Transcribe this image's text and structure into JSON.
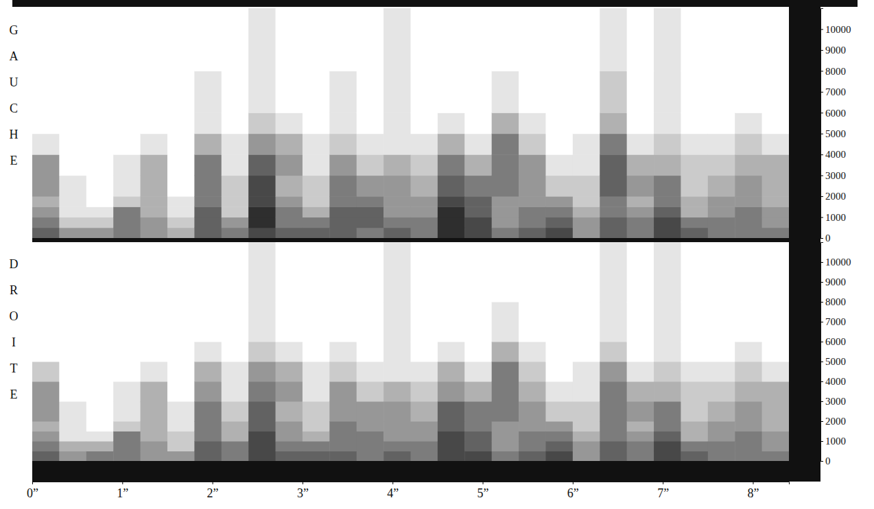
{
  "chart_data": [
    {
      "type": "heatmap",
      "title": "GAUCHE",
      "tick_labels": "y",
      "xlim": [
        0,
        8.4
      ],
      "ylim": [
        0,
        11000
      ],
      "yticks": [
        0,
        1000,
        2000,
        3000,
        4000,
        5000,
        6000,
        7000,
        8000,
        9000,
        10000
      ],
      "x_bins": [
        0,
        0.3,
        0.6,
        0.9,
        1.2,
        1.5,
        1.8,
        2.1,
        2.4,
        2.7,
        3.0,
        3.3,
        3.6,
        3.9,
        4.2,
        4.5,
        4.8,
        5.1,
        5.4,
        5.7,
        6.0,
        6.3,
        6.6,
        6.9,
        7.2,
        7.5,
        7.8,
        8.1,
        8.4
      ],
      "y_bins": [
        0,
        500,
        1000,
        1500,
        2000,
        3000,
        4000,
        5000,
        6000,
        8000,
        11000
      ],
      "zlim": [
        0,
        9
      ],
      "values": [
        [
          6,
          5,
          4,
          3,
          4,
          4,
          1,
          0,
          0,
          0
        ],
        [
          4,
          2,
          1,
          1,
          1,
          0,
          0,
          0,
          0,
          0
        ],
        [
          4,
          2,
          1,
          0,
          0,
          0,
          0,
          0,
          0,
          0
        ],
        [
          5,
          5,
          5,
          2,
          1,
          1,
          0,
          0,
          0,
          0
        ],
        [
          4,
          4,
          3,
          3,
          3,
          3,
          1,
          0,
          0,
          0
        ],
        [
          3,
          2,
          1,
          1,
          0,
          0,
          0,
          0,
          0,
          0
        ],
        [
          6,
          6,
          6,
          5,
          5,
          5,
          3,
          1,
          1,
          0
        ],
        [
          5,
          4,
          2,
          2,
          2,
          1,
          1,
          0,
          0,
          0
        ],
        [
          7,
          8,
          8,
          7,
          7,
          6,
          4,
          2,
          1,
          1
        ],
        [
          6,
          5,
          5,
          4,
          3,
          4,
          3,
          1,
          0,
          0
        ],
        [
          6,
          5,
          3,
          2,
          2,
          1,
          1,
          0,
          0,
          0
        ],
        [
          6,
          6,
          6,
          5,
          5,
          4,
          2,
          1,
          1,
          0
        ],
        [
          5,
          6,
          6,
          5,
          4,
          2,
          1,
          0,
          0,
          0
        ],
        [
          6,
          5,
          4,
          4,
          4,
          3,
          1,
          1,
          1,
          1
        ],
        [
          5,
          5,
          4,
          4,
          3,
          2,
          1,
          0,
          0,
          0
        ],
        [
          8,
          8,
          8,
          7,
          6,
          5,
          3,
          1,
          0,
          0
        ],
        [
          7,
          7,
          6,
          6,
          5,
          3,
          1,
          0,
          0,
          0
        ],
        [
          5,
          4,
          4,
          4,
          5,
          5,
          5,
          3,
          1,
          0
        ],
        [
          6,
          5,
          5,
          4,
          4,
          4,
          2,
          1,
          0,
          0
        ],
        [
          7,
          6,
          5,
          4,
          2,
          1,
          0,
          0,
          0,
          0
        ],
        [
          4,
          4,
          3,
          2,
          2,
          1,
          1,
          0,
          0,
          0
        ],
        [
          6,
          6,
          5,
          5,
          6,
          6,
          5,
          3,
          2,
          1
        ],
        [
          5,
          5,
          4,
          3,
          4,
          3,
          1,
          0,
          0,
          0
        ],
        [
          7,
          7,
          6,
          5,
          5,
          3,
          2,
          1,
          1,
          1
        ],
        [
          6,
          5,
          3,
          3,
          2,
          2,
          1,
          0,
          0,
          0
        ],
        [
          5,
          5,
          4,
          4,
          3,
          2,
          1,
          0,
          0,
          0
        ],
        [
          5,
          5,
          5,
          4,
          4,
          3,
          2,
          1,
          0,
          0
        ],
        [
          5,
          4,
          4,
          3,
          3,
          3,
          1,
          0,
          0,
          0
        ]
      ]
    },
    {
      "type": "heatmap",
      "title": "DROITE",
      "xlim": [
        0,
        8.4
      ],
      "ylim": [
        0,
        11000
      ],
      "xticks": [
        {
          "value": 0,
          "label": "0”"
        },
        {
          "value": 1,
          "label": "1”"
        },
        {
          "value": 2,
          "label": "2”"
        },
        {
          "value": 3,
          "label": "3”"
        },
        {
          "value": 4,
          "label": "4”"
        },
        {
          "value": 5,
          "label": "5”"
        },
        {
          "value": 6,
          "label": "6”"
        },
        {
          "value": 7,
          "label": "7”"
        },
        {
          "value": 8,
          "label": "8”"
        }
      ],
      "yticks": [
        0,
        1000,
        2000,
        3000,
        4000,
        5000,
        6000,
        7000,
        8000,
        9000,
        10000
      ],
      "x_bins": [
        0,
        0.3,
        0.6,
        0.9,
        1.2,
        1.5,
        1.8,
        2.1,
        2.4,
        2.7,
        3.0,
        3.3,
        3.6,
        3.9,
        4.2,
        4.5,
        4.8,
        5.1,
        5.4,
        5.7,
        6.0,
        6.3,
        6.6,
        6.9,
        7.2,
        7.5,
        7.8,
        8.1,
        8.4
      ],
      "y_bins": [
        0,
        500,
        1000,
        1500,
        2000,
        3000,
        4000,
        5000,
        6000,
        8000,
        11000
      ],
      "zlim": [
        0,
        9
      ],
      "values": [
        [
          6,
          5,
          4,
          3,
          4,
          4,
          2,
          0,
          0,
          0
        ],
        [
          4,
          3,
          1,
          1,
          1,
          0,
          0,
          0,
          0,
          0
        ],
        [
          5,
          3,
          1,
          0,
          0,
          0,
          0,
          0,
          0,
          0
        ],
        [
          5,
          5,
          5,
          2,
          1,
          1,
          0,
          0,
          0,
          0
        ],
        [
          4,
          4,
          3,
          3,
          3,
          3,
          1,
          0,
          0,
          0
        ],
        [
          4,
          2,
          2,
          1,
          1,
          0,
          0,
          0,
          0,
          0
        ],
        [
          6,
          6,
          5,
          5,
          5,
          4,
          3,
          1,
          0,
          0
        ],
        [
          5,
          5,
          3,
          3,
          2,
          1,
          1,
          0,
          0,
          0
        ],
        [
          7,
          7,
          7,
          6,
          6,
          5,
          4,
          2,
          1,
          1
        ],
        [
          6,
          5,
          4,
          4,
          3,
          4,
          3,
          1,
          0,
          0
        ],
        [
          6,
          5,
          3,
          2,
          2,
          1,
          1,
          0,
          0,
          0
        ],
        [
          6,
          5,
          5,
          5,
          4,
          4,
          2,
          1,
          0,
          0
        ],
        [
          5,
          5,
          5,
          4,
          4,
          2,
          1,
          0,
          0,
          0
        ],
        [
          6,
          5,
          4,
          4,
          4,
          3,
          1,
          1,
          1,
          1
        ],
        [
          5,
          5,
          4,
          4,
          3,
          2,
          1,
          0,
          0,
          0
        ],
        [
          7,
          7,
          7,
          6,
          6,
          4,
          3,
          1,
          0,
          0
        ],
        [
          7,
          6,
          6,
          5,
          5,
          3,
          1,
          0,
          0,
          0
        ],
        [
          5,
          4,
          4,
          4,
          5,
          5,
          5,
          3,
          1,
          0
        ],
        [
          6,
          5,
          5,
          4,
          4,
          3,
          2,
          1,
          0,
          0
        ],
        [
          7,
          6,
          5,
          4,
          2,
          1,
          0,
          0,
          0,
          0
        ],
        [
          4,
          4,
          3,
          2,
          2,
          1,
          1,
          0,
          0,
          0
        ],
        [
          6,
          6,
          5,
          5,
          5,
          5,
          4,
          2,
          1,
          1
        ],
        [
          5,
          5,
          4,
          3,
          4,
          3,
          1,
          0,
          0,
          0
        ],
        [
          7,
          7,
          6,
          5,
          5,
          3,
          2,
          1,
          1,
          1
        ],
        [
          6,
          5,
          3,
          3,
          2,
          2,
          1,
          0,
          0,
          0
        ],
        [
          5,
          5,
          4,
          4,
          3,
          2,
          1,
          0,
          0,
          0
        ],
        [
          5,
          5,
          5,
          4,
          4,
          3,
          2,
          1,
          0,
          0
        ],
        [
          5,
          4,
          4,
          3,
          3,
          3,
          1,
          0,
          0,
          0
        ]
      ]
    }
  ]
}
